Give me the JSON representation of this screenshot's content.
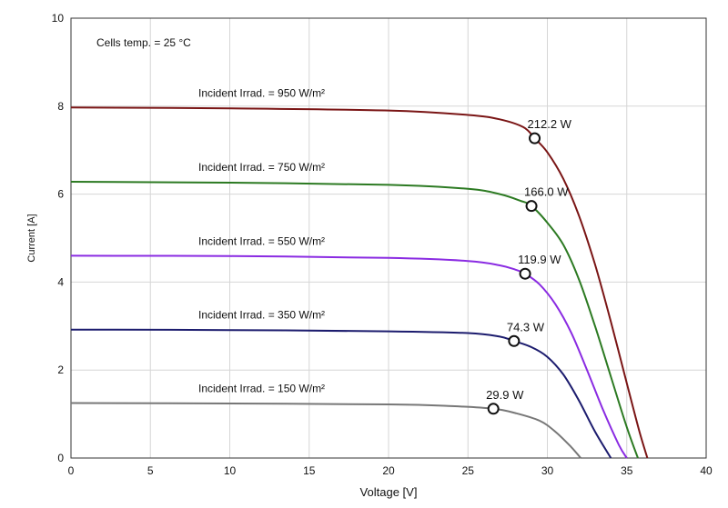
{
  "chart_data": {
    "type": "line",
    "xlabel": "Voltage [V]",
    "ylabel": "Current [A]",
    "xlim": [
      0,
      40
    ],
    "ylim": [
      0,
      10
    ],
    "xticks": [
      0,
      5,
      10,
      15,
      20,
      25,
      30,
      35,
      40
    ],
    "yticks": [
      0,
      2,
      4,
      6,
      8,
      10
    ],
    "grid": true,
    "annotation": "Cells temp.  = 25 °C",
    "series": [
      {
        "name": "Incident Irrad. = 950 W/m²",
        "color": "#7a1515",
        "x": [
          0,
          10,
          20,
          25,
          27,
          28.5,
          29.2,
          30,
          31,
          32,
          33,
          34,
          35,
          35.8,
          36.3
        ],
        "y": [
          7.97,
          7.95,
          7.9,
          7.8,
          7.7,
          7.52,
          7.27,
          6.95,
          6.35,
          5.5,
          4.4,
          3.1,
          1.7,
          0.6,
          0
        ],
        "mpp": {
          "x": 29.2,
          "y": 7.27,
          "label": "212.2 W"
        }
      },
      {
        "name": "Incident Irrad. = 750 W/m²",
        "color": "#2c7a22",
        "x": [
          0,
          10,
          20,
          25,
          27,
          28.3,
          29.0,
          30,
          31,
          32,
          33,
          34,
          35,
          35.7
        ],
        "y": [
          6.28,
          6.26,
          6.21,
          6.12,
          6.0,
          5.85,
          5.73,
          5.35,
          4.85,
          4.05,
          3.0,
          1.85,
          0.7,
          0
        ],
        "mpp": {
          "x": 29.0,
          "y": 5.73,
          "label": "166.0 W"
        }
      },
      {
        "name": "Incident Irrad. = 550 W/m²",
        "color": "#8a2be2",
        "x": [
          0,
          10,
          20,
          25,
          27,
          28.0,
          28.6,
          29.5,
          30.5,
          31.5,
          32.5,
          33.5,
          34.5,
          35.0
        ],
        "y": [
          4.6,
          4.59,
          4.55,
          4.48,
          4.38,
          4.28,
          4.19,
          3.95,
          3.5,
          2.85,
          2.0,
          1.1,
          0.3,
          0
        ],
        "mpp": {
          "x": 28.6,
          "y": 4.19,
          "label": "119.9 W"
        }
      },
      {
        "name": "Incident Irrad. = 350 W/m²",
        "color": "#1c1c6e",
        "x": [
          0,
          10,
          20,
          25,
          27,
          27.9,
          29,
          30,
          31,
          32,
          33,
          34.0
        ],
        "y": [
          2.92,
          2.91,
          2.88,
          2.84,
          2.76,
          2.66,
          2.52,
          2.3,
          1.9,
          1.3,
          0.6,
          0
        ],
        "mpp": {
          "x": 27.9,
          "y": 2.66,
          "label": "74.3 W"
        }
      },
      {
        "name": "Incident Irrad. = 150 W/m²",
        "color": "#777777",
        "x": [
          0,
          10,
          20,
          24,
          26.6,
          28,
          29.5,
          30.5,
          31.5,
          32.1
        ],
        "y": [
          1.25,
          1.24,
          1.22,
          1.18,
          1.12,
          1.02,
          0.85,
          0.6,
          0.25,
          0
        ],
        "mpp": {
          "x": 26.6,
          "y": 1.12,
          "label": "29.9 W"
        }
      }
    ]
  }
}
